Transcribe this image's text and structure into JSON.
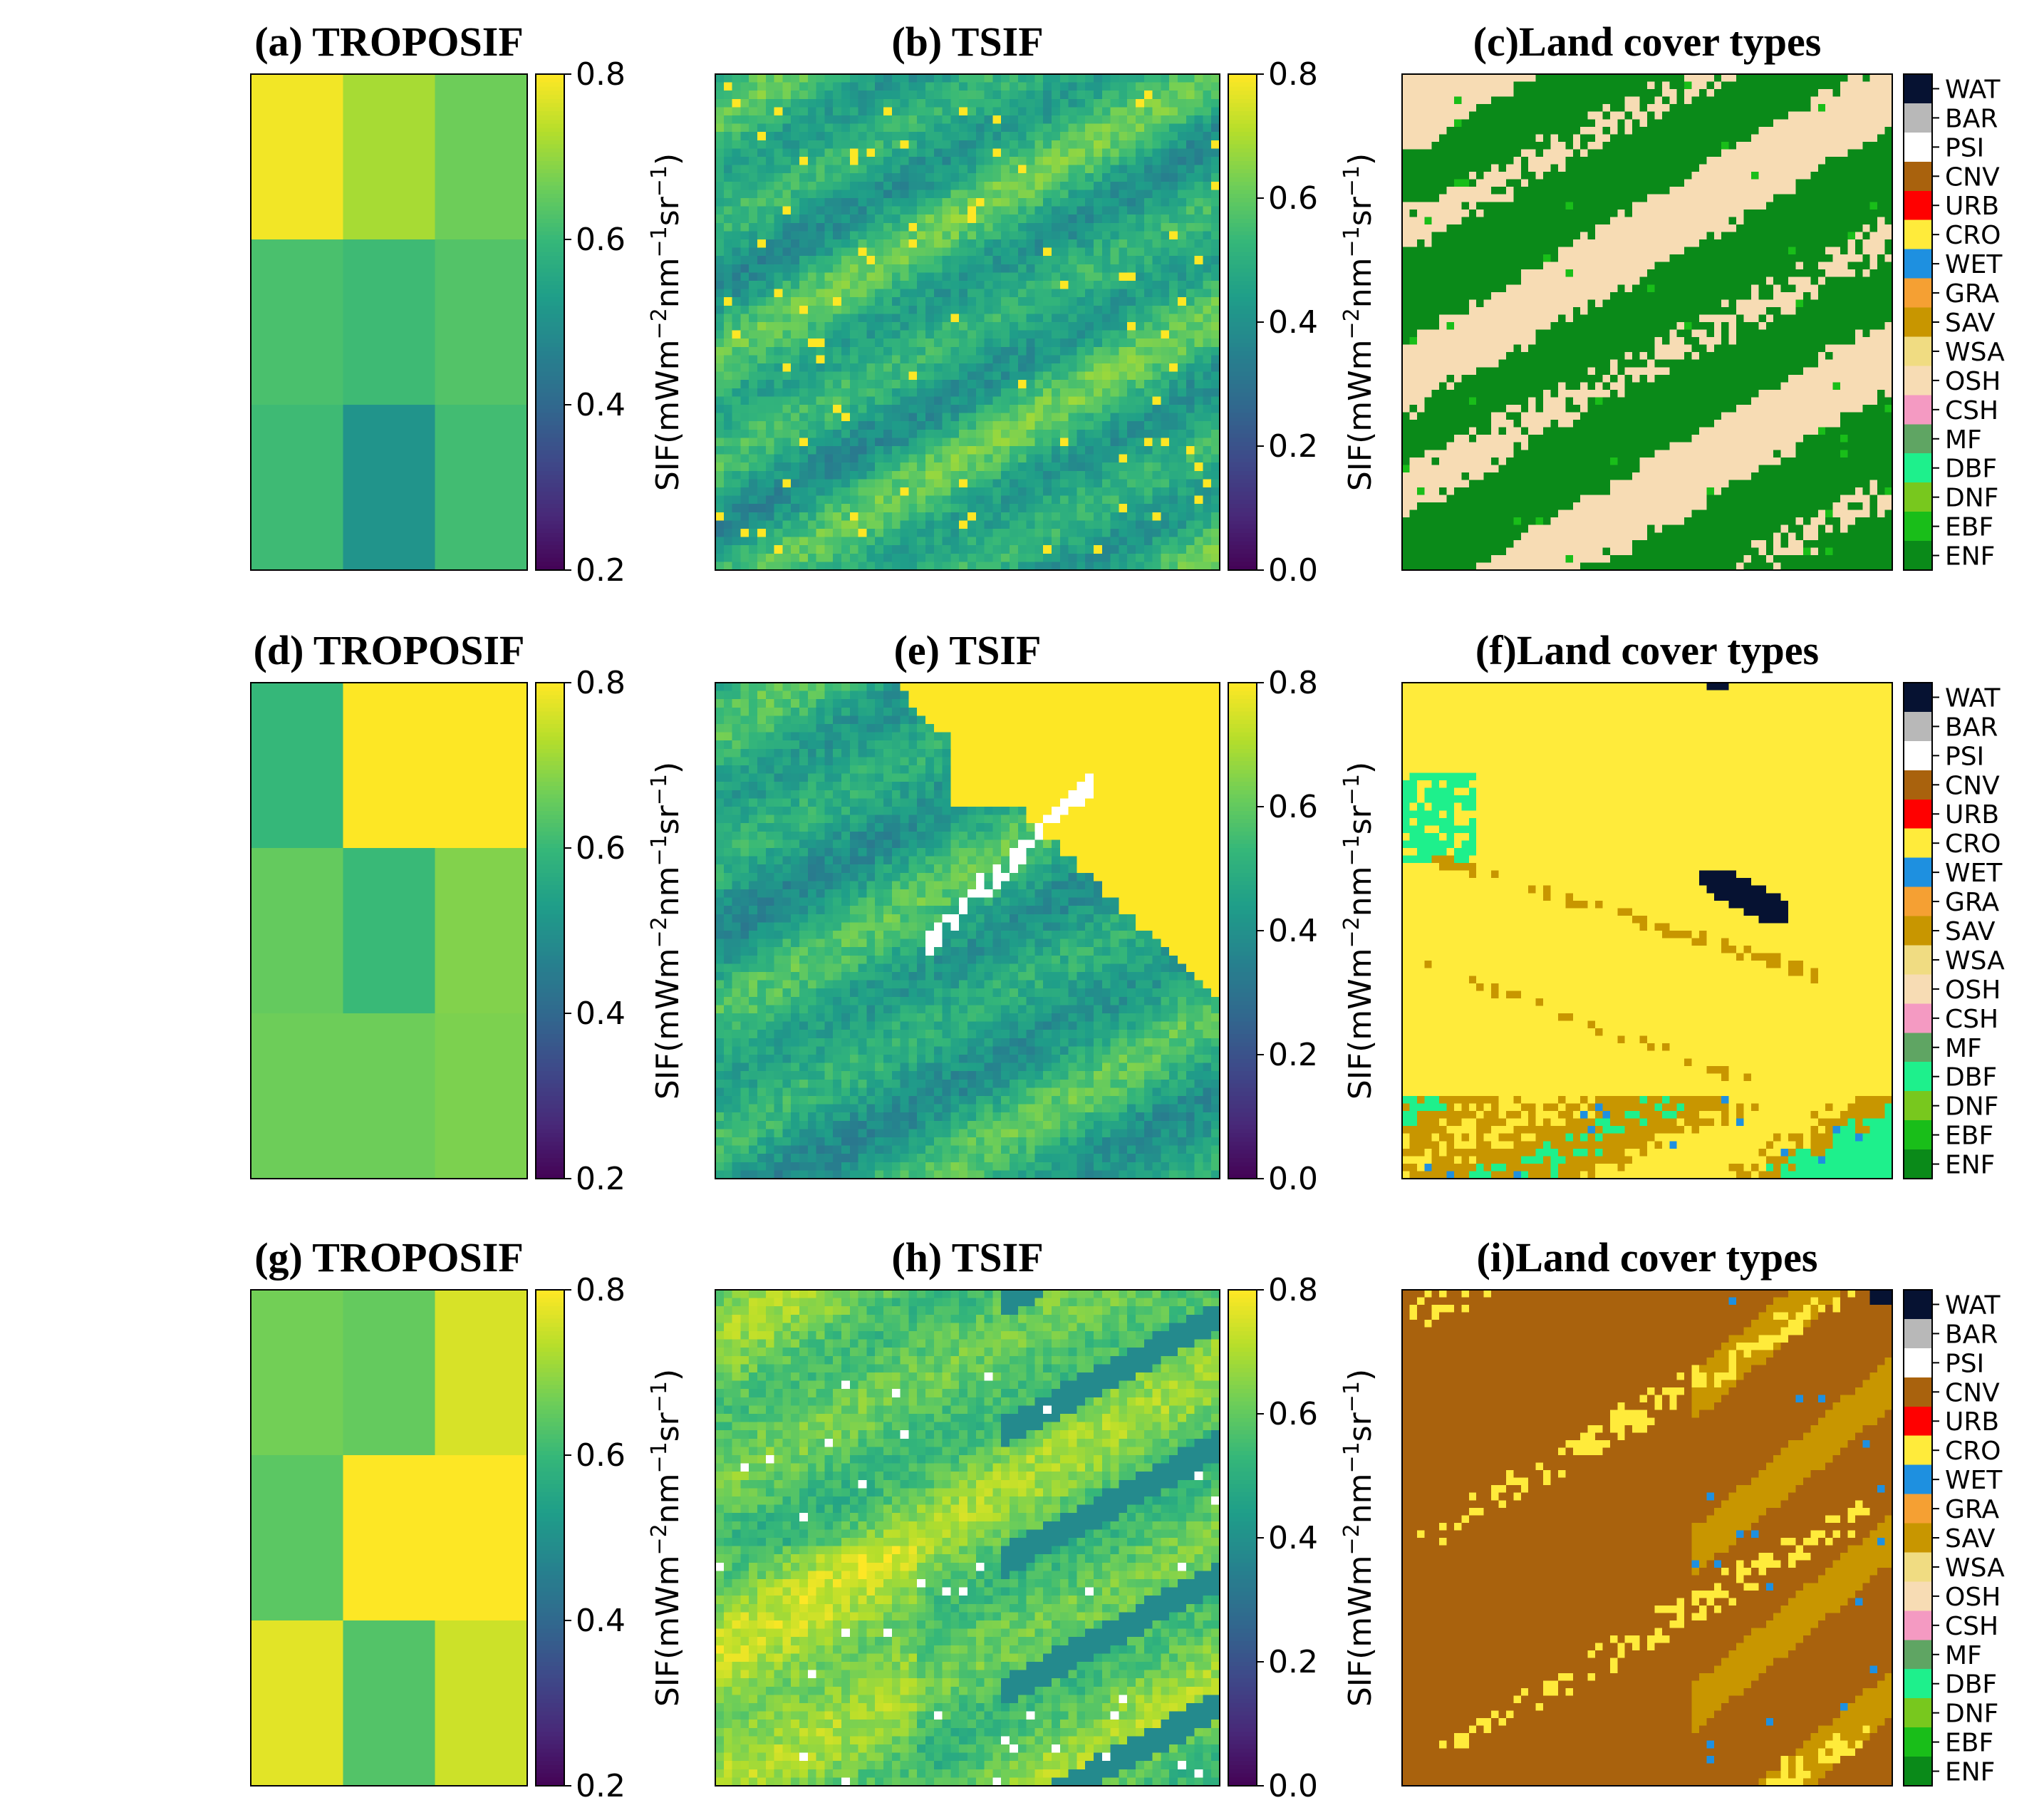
{
  "figure": {
    "rows": 3,
    "columns": 3
  },
  "colormap": {
    "name": "viridis",
    "stops": [
      "#440154",
      "#482878",
      "#3e4989",
      "#31688e",
      "#26828e",
      "#1f9e89",
      "#35b779",
      "#6ece58",
      "#b5de2b",
      "#fde725"
    ]
  },
  "land_cover_legend": {
    "classes": [
      {
        "code": "WAT",
        "color": "#061232"
      },
      {
        "code": "BAR",
        "color": "#b8b8b8"
      },
      {
        "code": "PSI",
        "color": "#ffffff"
      },
      {
        "code": "CNV",
        "color": "#a9620d"
      },
      {
        "code": "URB",
        "color": "#ff0000"
      },
      {
        "code": "CRO",
        "color": "#ffeb3b"
      },
      {
        "code": "WET",
        "color": "#1e90e0"
      },
      {
        "code": "GRA",
        "color": "#f5a033"
      },
      {
        "code": "SAV",
        "color": "#c89600"
      },
      {
        "code": "WSA",
        "color": "#f0dc82"
      },
      {
        "code": "OSH",
        "color": "#f7dcb4"
      },
      {
        "code": "CSH",
        "color": "#f49ac2"
      },
      {
        "code": "MF",
        "color": "#5fa563"
      },
      {
        "code": "DBF",
        "color": "#1ef08c"
      },
      {
        "code": "DNF",
        "color": "#78c81e"
      },
      {
        "code": "EBF",
        "color": "#19be19"
      },
      {
        "code": "ENF",
        "color": "#0a8a19"
      }
    ]
  },
  "chart_data": [
    {
      "type": "heatmap",
      "panel": "a",
      "title": "(a) TROPOSIF",
      "colorbar": {
        "label": "SIF(mWm−2nm−1sr−1)",
        "range": [
          0.2,
          0.8
        ],
        "ticks": [
          "0.2",
          "0.4",
          "0.6",
          "0.8"
        ]
      },
      "grid": [
        [
          0.79,
          0.72,
          0.665
        ],
        [
          0.625,
          0.61,
          0.635
        ],
        [
          0.61,
          0.51,
          0.615
        ]
      ]
    },
    {
      "type": "heatmap",
      "panel": "b",
      "title": "(b) TSIF",
      "pattern": "tsif_mixed",
      "seed": 11,
      "colorbar": {
        "label": "SIF(mWm−2nm−1sr−1)",
        "range": [
          0.0,
          0.8
        ],
        "ticks": [
          "0.0",
          "0.2",
          "0.4",
          "0.6",
          "0.8"
        ]
      }
    },
    {
      "type": "heatmap",
      "panel": "c",
      "title": "(c)Land cover types",
      "pattern": "lc_forest",
      "seed": 21,
      "legend": "land_cover_legend"
    },
    {
      "type": "heatmap",
      "panel": "d",
      "title": "(d) TROPOSIF",
      "colorbar": {
        "label": "SIF(mWm−2nm−1sr−1)",
        "range": [
          0.2,
          0.8
        ],
        "ticks": [
          "0.2",
          "0.4",
          "0.6",
          "0.8"
        ]
      },
      "grid": [
        [
          0.6,
          0.8,
          0.8
        ],
        [
          0.655,
          0.605,
          0.685
        ],
        [
          0.665,
          0.665,
          0.68
        ]
      ]
    },
    {
      "type": "heatmap",
      "panel": "e",
      "title": "(e) TSIF",
      "pattern": "tsif_crop",
      "seed": 33,
      "colorbar": {
        "label": "SIF(mWm−2nm−1sr−1)",
        "range": [
          0.0,
          0.8
        ],
        "ticks": [
          "0.0",
          "0.2",
          "0.4",
          "0.6",
          "0.8"
        ]
      }
    },
    {
      "type": "heatmap",
      "panel": "f",
      "title": "(f)Land cover types",
      "pattern": "lc_crop",
      "seed": 41,
      "legend": "land_cover_legend"
    },
    {
      "type": "heatmap",
      "panel": "g",
      "title": "(g) TROPOSIF",
      "colorbar": {
        "label": "SIF(mWm−2nm−1sr−1)",
        "range": [
          0.2,
          0.8
        ],
        "ticks": [
          "0.2",
          "0.4",
          "0.6",
          "0.8"
        ]
      },
      "grid": [
        [
          0.67,
          0.655,
          0.765
        ],
        [
          0.645,
          0.8,
          0.8
        ],
        [
          0.775,
          0.635,
          0.755
        ]
      ]
    },
    {
      "type": "heatmap",
      "panel": "h",
      "title": "(h) TSIF",
      "pattern": "tsif_cnv",
      "seed": 57,
      "colorbar": {
        "label": "SIF(mWm−2nm−1sr−1)",
        "range": [
          0.0,
          0.8
        ],
        "ticks": [
          "0.0",
          "0.2",
          "0.4",
          "0.6",
          "0.8"
        ]
      }
    },
    {
      "type": "heatmap",
      "panel": "i",
      "title": "(i)Land cover types",
      "pattern": "lc_cnv",
      "seed": 63,
      "legend": "land_cover_legend"
    }
  ]
}
